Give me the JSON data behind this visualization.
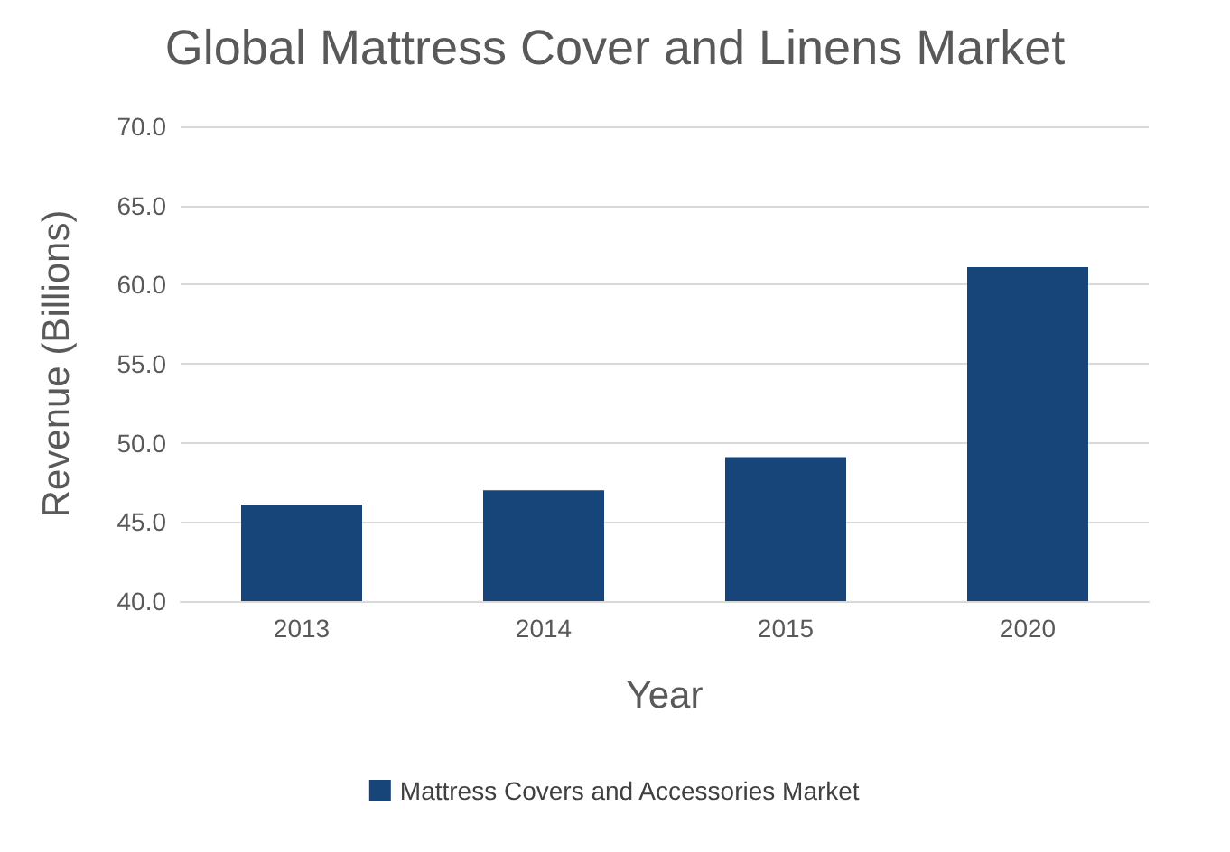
{
  "chart_data": {
    "type": "bar",
    "title": "Global Mattress Cover and Linens Market",
    "xlabel": "Year",
    "ylabel": "Revenue (Billions)",
    "categories": [
      "2013",
      "2014",
      "2015",
      "2020"
    ],
    "series": [
      {
        "name": "Mattress Covers and Accessories Market",
        "color": "#17457a",
        "values": [
          46.1,
          47.0,
          49.1,
          61.1
        ]
      }
    ],
    "ylim": [
      40,
      70
    ],
    "yticks": [
      {
        "value": 40,
        "label": "40.0"
      },
      {
        "value": 45,
        "label": "45.0"
      },
      {
        "value": 50,
        "label": "50.0"
      },
      {
        "value": 55,
        "label": "55.0"
      },
      {
        "value": 60,
        "label": "60.0"
      },
      {
        "value": 65,
        "label": "65.0"
      },
      {
        "value": 70,
        "label": "70.0"
      }
    ],
    "grid": "y",
    "legend": "bottom"
  }
}
